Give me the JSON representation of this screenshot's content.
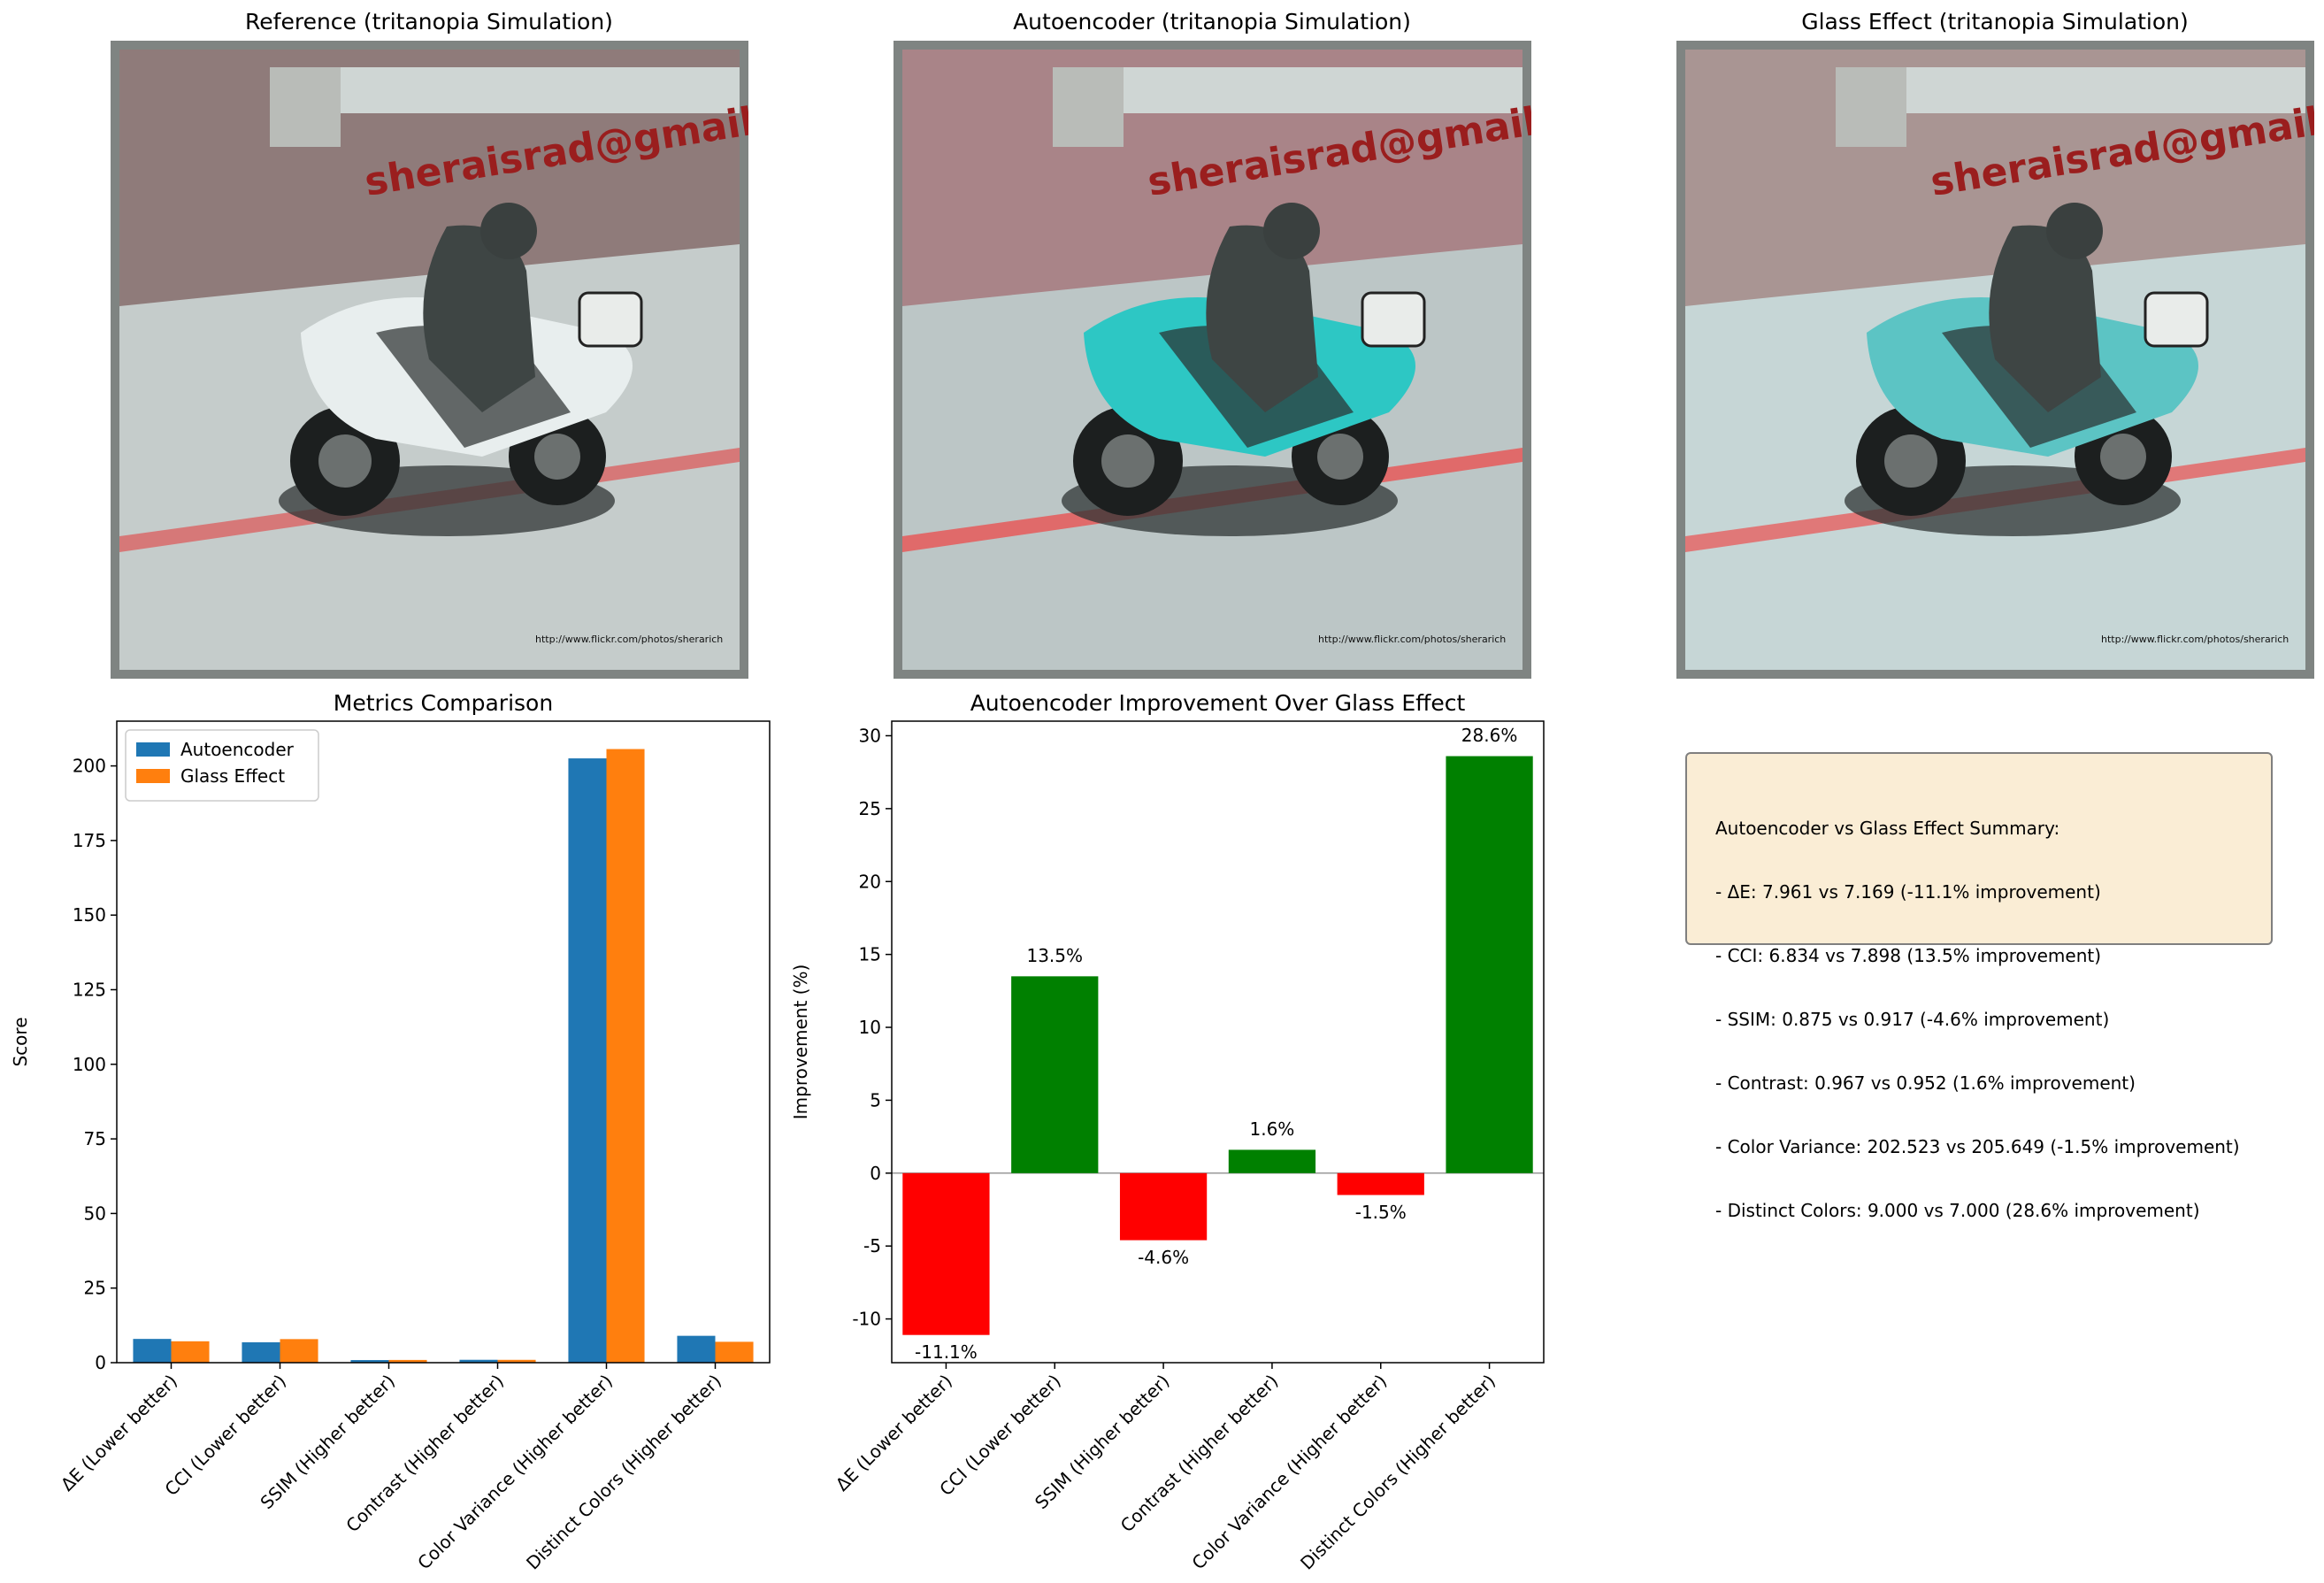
{
  "panels": {
    "reference": {
      "title": "Reference (tritanopia Simulation)",
      "watermark": "sheraisrad@gmail.com",
      "url": "http://www.flickr.com/photos/sherarich",
      "colors": {
        "road": "#c5cccb",
        "dirt": "#8f7b7a",
        "stripe": "#d67878",
        "body": "#e8eeee"
      }
    },
    "autoencoder": {
      "title": "Autoencoder (tritanopia Simulation)",
      "watermark": "sheraisrad@gmail.com",
      "url": "http://www.flickr.com/photos/sherarich",
      "colors": {
        "road": "#bcc6c6",
        "dirt": "#a98488",
        "stripe": "#e06a6a",
        "body": "#2dc7c4"
      }
    },
    "glass": {
      "title": "Glass Effect (tritanopia Simulation)",
      "watermark": "sheraisrad@gmail.com",
      "url": "http://www.flickr.com/photos/sherarich",
      "colors": {
        "road": "#c6d6d6",
        "dirt": "#a99593",
        "stripe": "#e07878",
        "body": "#5cc4c4"
      }
    }
  },
  "chart_data": [
    {
      "type": "bar",
      "title": "Metrics Comparison",
      "xlabel": "",
      "ylabel": "Score",
      "categories": [
        "ΔE (Lower better)",
        "CCI (Lower better)",
        "SSIM (Higher better)",
        "Contrast (Higher better)",
        "Color Variance (Higher better)",
        "Distinct Colors (Higher better)"
      ],
      "series": [
        {
          "name": "Autoencoder",
          "color": "#1f77b4",
          "values": [
            7.961,
            6.834,
            0.875,
            0.967,
            202.523,
            9.0
          ]
        },
        {
          "name": "Glass Effect",
          "color": "#ff7f0e",
          "values": [
            7.169,
            7.898,
            0.917,
            0.952,
            205.649,
            7.0
          ]
        }
      ],
      "ylim": [
        0,
        215
      ],
      "yticks": [
        0,
        25,
        50,
        75,
        100,
        125,
        150,
        175,
        200
      ],
      "legend": "top-left",
      "grid": false
    },
    {
      "type": "bar",
      "title": "Autoencoder Improvement Over Glass Effect",
      "xlabel": "",
      "ylabel": "Improvement (%)",
      "categories": [
        "ΔE (Lower better)",
        "CCI (Lower better)",
        "SSIM (Higher better)",
        "Contrast (Higher better)",
        "Color Variance (Higher better)",
        "Distinct Colors (Higher better)"
      ],
      "values": [
        -11.1,
        13.5,
        -4.6,
        1.6,
        -1.5,
        28.6
      ],
      "labels": [
        "-11.1%",
        "13.5%",
        "-4.6%",
        "1.6%",
        "-1.5%",
        "28.6%"
      ],
      "positive_color": "#008000",
      "negative_color": "#ff0000",
      "ylim": [
        -13,
        31
      ],
      "yticks": [
        -10,
        -5,
        0,
        5,
        10,
        15,
        20,
        25,
        30
      ],
      "grid": false
    }
  ],
  "summary": {
    "lines": [
      "Autoencoder vs Glass Effect Summary:",
      "- ΔE: 7.961 vs 7.169 (-11.1% improvement)",
      "- CCI: 6.834 vs 7.898 (13.5% improvement)",
      "- SSIM: 0.875 vs 0.917 (-4.6% improvement)",
      "- Contrast: 0.967 vs 0.952 (1.6% improvement)",
      "- Color Variance: 202.523 vs 205.649 (-1.5% improvement)",
      "- Distinct Colors: 9.000 vs 7.000 (28.6% improvement)"
    ]
  }
}
